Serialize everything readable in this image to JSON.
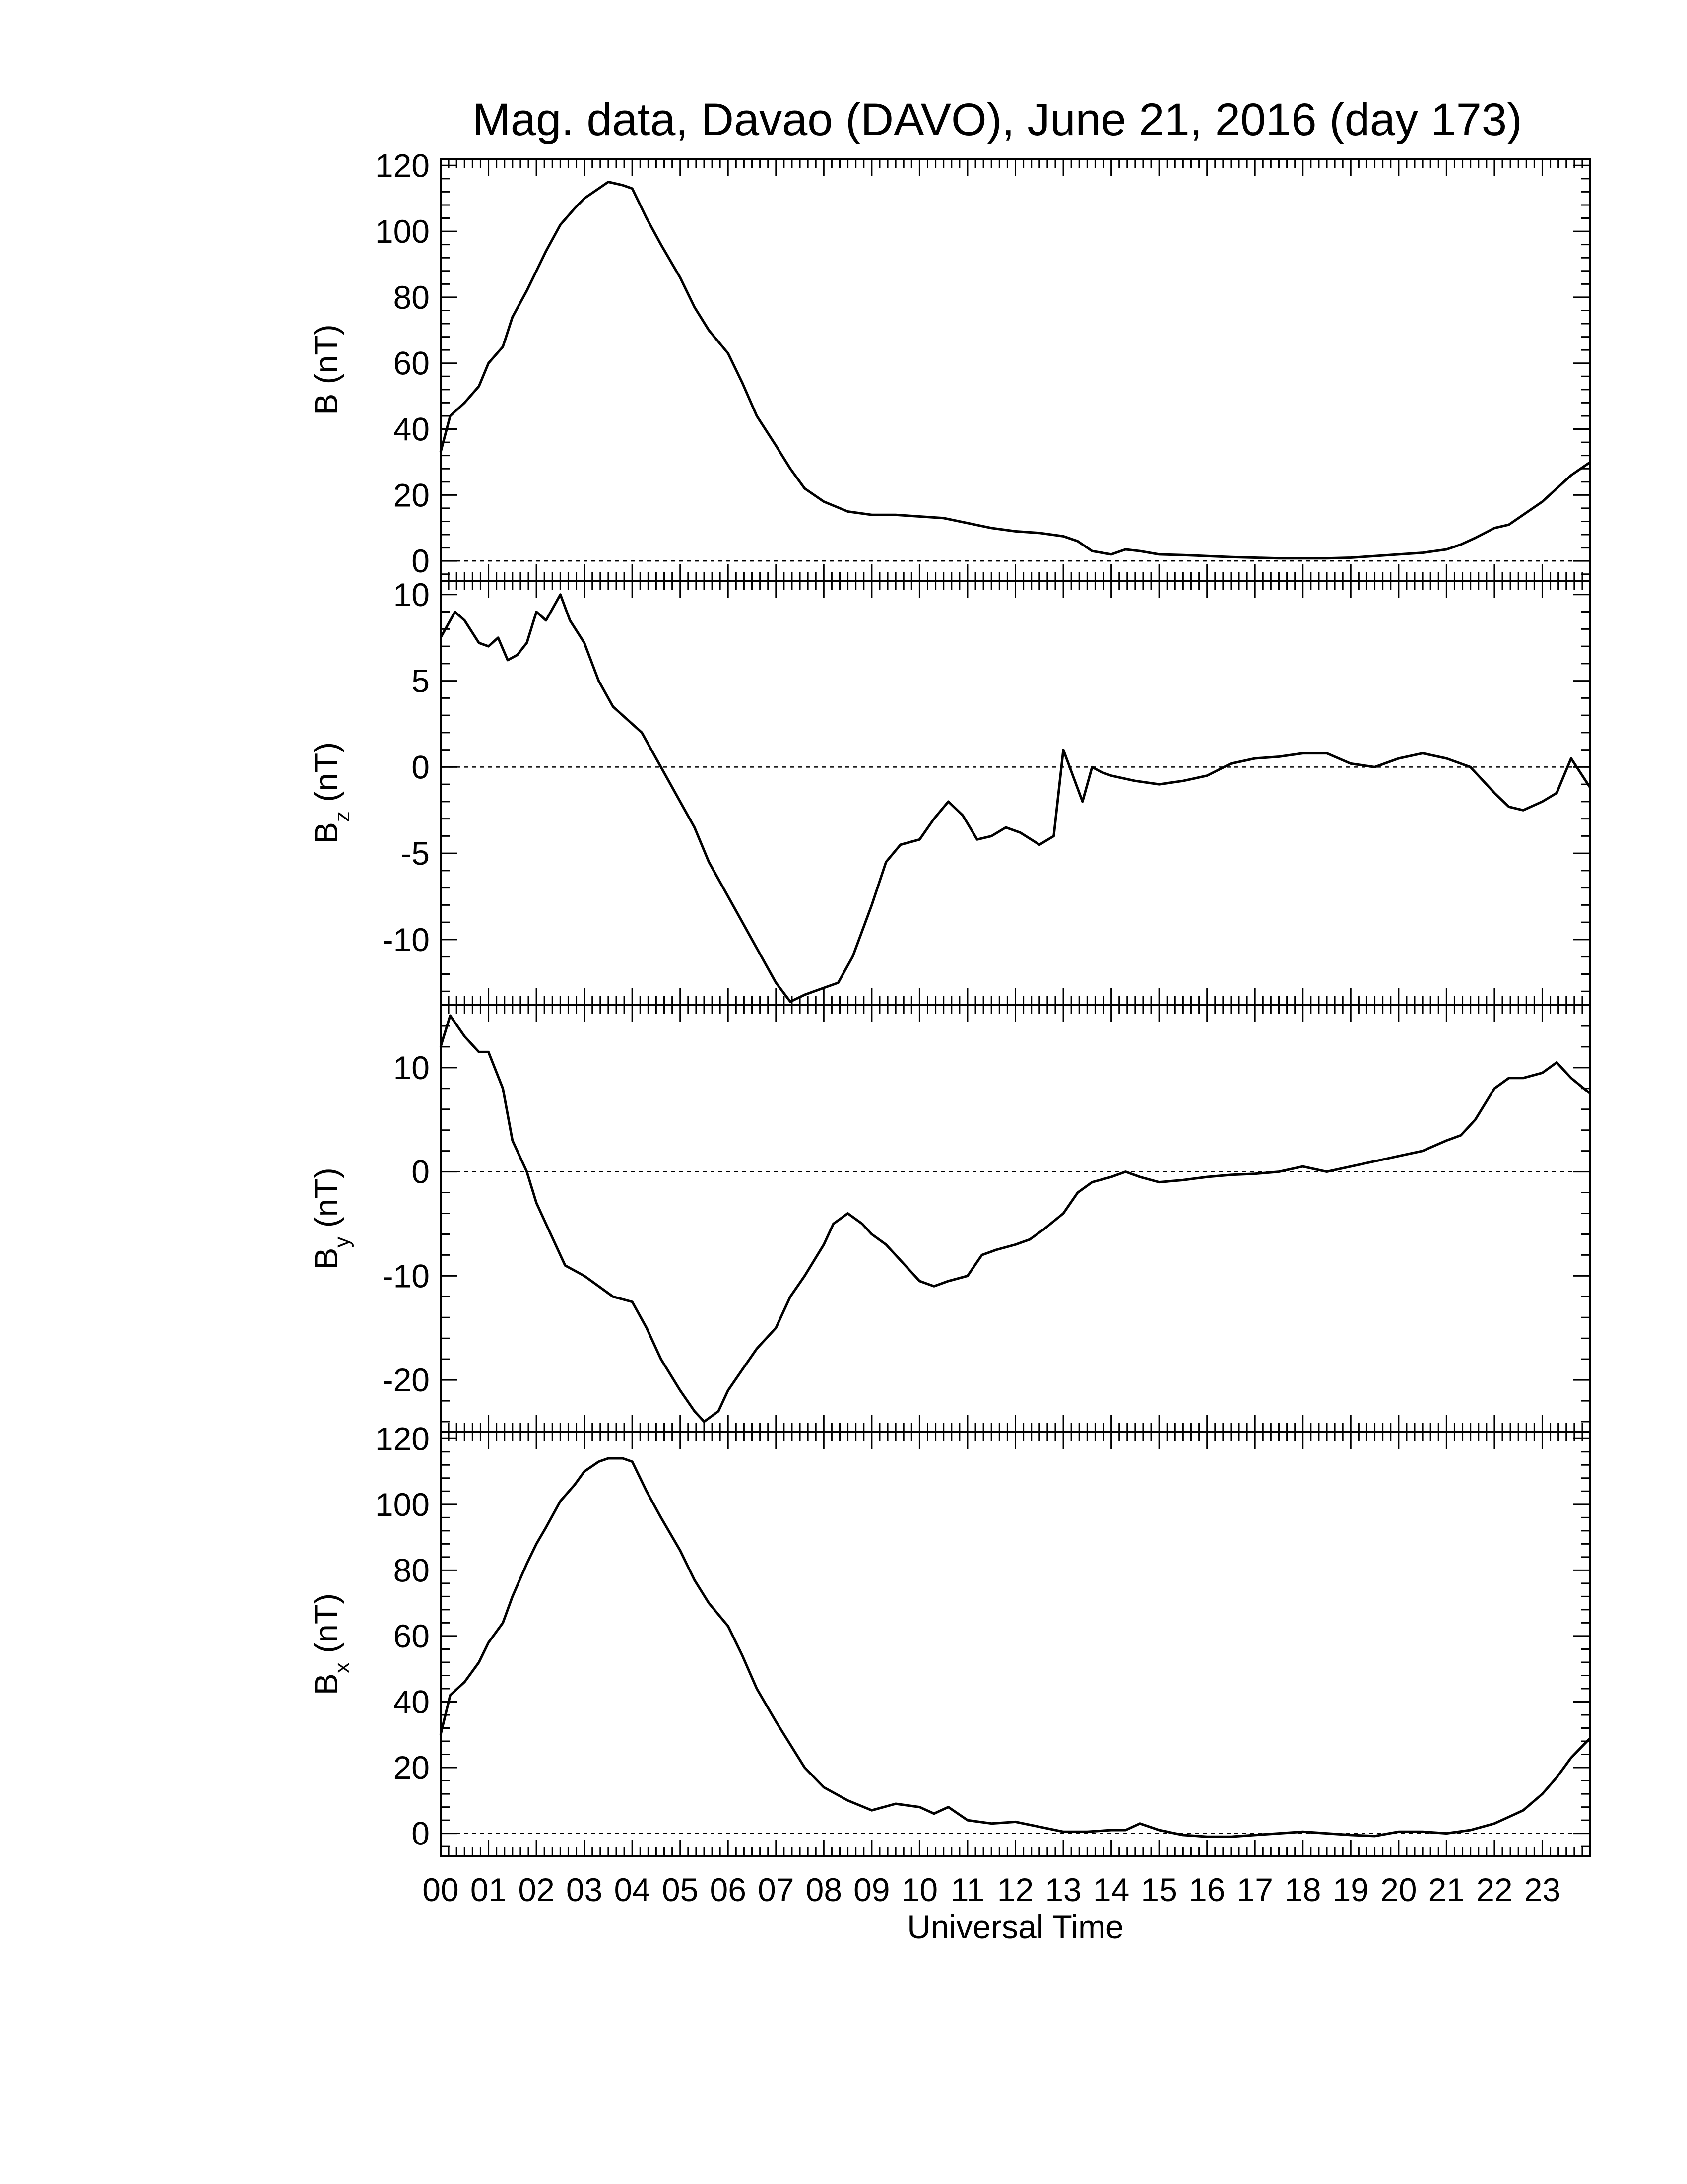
{
  "title": "Mag. data, Davao (DAVO), June 21, 2016 (day 173)",
  "colors": {
    "line": "#000000",
    "background": "#ffffff",
    "zero_line": "#000000"
  },
  "chart_data": [
    {
      "type": "line",
      "ylabel_main": "B",
      "ylabel_sub": "",
      "ylabel_unit": "(nT)",
      "ylim": [
        -6,
        122
      ],
      "yticks": [
        0,
        20,
        40,
        60,
        80,
        100,
        120
      ],
      "zero_line": true,
      "series": [
        {
          "x": [
            0,
            0.2,
            0.5,
            0.8,
            1.0,
            1.3,
            1.5,
            1.8,
            2.0,
            2.2,
            2.5,
            2.8,
            3.0,
            3.3,
            3.5,
            3.8,
            4.0,
            4.3,
            4.6,
            5.0,
            5.3,
            5.6,
            6.0,
            6.3,
            6.6,
            7.0,
            7.3,
            7.6,
            8.0,
            8.5,
            9.0,
            9.5,
            10.0,
            10.5,
            11.0,
            11.5,
            12.0,
            12.5,
            13.0,
            13.3,
            13.6,
            14.0,
            14.3,
            14.6,
            15.0,
            15.5,
            16.0,
            16.5,
            17.0,
            17.5,
            18.0,
            18.5,
            19.0,
            19.5,
            20.0,
            20.5,
            21.0,
            21.3,
            21.6,
            22.0,
            22.3,
            22.6,
            23.0,
            23.3,
            23.6,
            24.0
          ],
          "y": [
            33,
            44,
            48,
            53,
            60,
            65,
            74,
            82,
            88,
            94,
            102,
            107,
            110,
            113,
            115,
            114,
            113,
            104,
            96,
            86,
            77,
            70,
            63,
            54,
            44,
            35,
            28,
            22,
            18,
            15,
            14,
            14,
            13.5,
            13,
            11.5,
            10,
            9,
            8.5,
            7.5,
            6,
            3,
            2,
            3.5,
            3,
            2,
            1.8,
            1.5,
            1.2,
            1,
            0.8,
            0.8,
            0.8,
            1,
            1.5,
            2,
            2.5,
            3.5,
            5,
            7,
            10,
            11,
            14,
            18,
            22,
            26,
            30
          ]
        }
      ]
    },
    {
      "type": "line",
      "ylabel_main": "B",
      "ylabel_sub": "z",
      "ylabel_unit": "(nT)",
      "ylim": [
        -13.8,
        10.8
      ],
      "yticks": [
        -10,
        -5,
        0,
        5,
        10
      ],
      "zero_line": true,
      "series": [
        {
          "x": [
            0,
            0.3,
            0.5,
            0.8,
            1.0,
            1.2,
            1.4,
            1.6,
            1.8,
            2.0,
            2.2,
            2.5,
            2.7,
            3.0,
            3.3,
            3.6,
            4.0,
            4.2,
            4.5,
            4.8,
            5.0,
            5.3,
            5.6,
            6.0,
            6.4,
            6.8,
            7.0,
            7.3,
            7.6,
            8.0,
            8.3,
            8.6,
            9.0,
            9.3,
            9.6,
            10.0,
            10.3,
            10.6,
            10.9,
            11.2,
            11.5,
            11.8,
            12.1,
            12.5,
            12.8,
            13.0,
            13.2,
            13.4,
            13.6,
            13.8,
            14.0,
            14.5,
            15.0,
            15.5,
            16.0,
            16.5,
            17.0,
            17.5,
            18.0,
            18.5,
            19.0,
            19.5,
            20.0,
            20.5,
            21.0,
            21.5,
            22.0,
            22.3,
            22.6,
            23.0,
            23.3,
            23.6,
            24.0
          ],
          "y": [
            7.5,
            9,
            8.5,
            7.2,
            7,
            7.5,
            6.2,
            6.5,
            7.2,
            9,
            8.5,
            10,
            8.5,
            7.2,
            5,
            3.5,
            2.5,
            2,
            0.5,
            -1,
            -2,
            -3.5,
            -5.5,
            -7.5,
            -9.5,
            -11.5,
            -12.5,
            -13.6,
            -13.2,
            -12.8,
            -12.5,
            -11,
            -8,
            -5.5,
            -4.5,
            -4.2,
            -3,
            -2,
            -2.8,
            -4.2,
            -4,
            -3.5,
            -3.8,
            -4.5,
            -4,
            1,
            -0.5,
            -2,
            0,
            -0.3,
            -0.5,
            -0.8,
            -1,
            -0.8,
            -0.5,
            0.2,
            0.5,
            0.6,
            0.8,
            0.8,
            0.2,
            0,
            0.5,
            0.8,
            0.5,
            0,
            -1.5,
            -2.3,
            -2.5,
            -2,
            -1.5,
            0.5,
            -1.2
          ]
        }
      ]
    },
    {
      "type": "line",
      "ylabel_main": "B",
      "ylabel_sub": "y",
      "ylabel_unit": "(nT)",
      "ylim": [
        -25,
        16
      ],
      "yticks": [
        -20,
        -10,
        0,
        10
      ],
      "zero_line": true,
      "series": [
        {
          "x": [
            0,
            0.2,
            0.5,
            0.8,
            1.0,
            1.3,
            1.5,
            1.8,
            2.0,
            2.3,
            2.6,
            3.0,
            3.3,
            3.6,
            4.0,
            4.3,
            4.6,
            5.0,
            5.3,
            5.5,
            5.8,
            6.0,
            6.3,
            6.6,
            7.0,
            7.3,
            7.6,
            8.0,
            8.2,
            8.5,
            8.8,
            9.0,
            9.3,
            9.6,
            10.0,
            10.3,
            10.6,
            11.0,
            11.3,
            11.6,
            12.0,
            12.3,
            12.6,
            13.0,
            13.3,
            13.6,
            14.0,
            14.3,
            14.6,
            15.0,
            15.5,
            16.0,
            16.5,
            17.0,
            17.5,
            18.0,
            18.5,
            19.0,
            19.5,
            20.0,
            20.5,
            21.0,
            21.3,
            21.6,
            22.0,
            22.3,
            22.6,
            23.0,
            23.3,
            23.6,
            24.0
          ],
          "y": [
            12,
            15,
            13,
            11.5,
            11.5,
            8,
            3,
            0,
            -3,
            -6,
            -9,
            -10,
            -11,
            -12,
            -12.5,
            -15,
            -18,
            -21,
            -23,
            -24,
            -23,
            -21,
            -19,
            -17,
            -15,
            -12,
            -10,
            -7,
            -5,
            -4,
            -5,
            -6,
            -7,
            -8.5,
            -10.5,
            -11,
            -10.5,
            -10,
            -8,
            -7.5,
            -7,
            -6.5,
            -5.5,
            -4,
            -2,
            -1,
            -0.5,
            0,
            -0.5,
            -1,
            -0.8,
            -0.5,
            -0.3,
            -0.2,
            0,
            0.5,
            0,
            0.5,
            1,
            1.5,
            2,
            3,
            3.5,
            5,
            8,
            9,
            9,
            9.5,
            10.5,
            9,
            7.5
          ]
        }
      ]
    },
    {
      "type": "line",
      "ylabel_main": "B",
      "ylabel_sub": "x",
      "ylabel_unit": "(nT)",
      "ylim": [
        -7,
        122
      ],
      "yticks": [
        0,
        20,
        40,
        60,
        80,
        100,
        120
      ],
      "zero_line": true,
      "series": [
        {
          "x": [
            0,
            0.2,
            0.5,
            0.8,
            1.0,
            1.3,
            1.5,
            1.8,
            2.0,
            2.2,
            2.5,
            2.8,
            3.0,
            3.3,
            3.5,
            3.8,
            4.0,
            4.3,
            4.6,
            5.0,
            5.3,
            5.6,
            6.0,
            6.3,
            6.6,
            7.0,
            7.3,
            7.6,
            8.0,
            8.5,
            9.0,
            9.5,
            10.0,
            10.3,
            10.6,
            11.0,
            11.5,
            12.0,
            12.5,
            13.0,
            13.5,
            14.0,
            14.3,
            14.6,
            15.0,
            15.5,
            16.0,
            16.5,
            17.0,
            17.5,
            18.0,
            18.5,
            19.0,
            19.5,
            20.0,
            20.5,
            21.0,
            21.5,
            22.0,
            22.3,
            22.6,
            23.0,
            23.3,
            23.6,
            24.0
          ],
          "y": [
            30,
            42,
            46,
            52,
            58,
            64,
            72,
            82,
            88,
            93,
            101,
            106,
            110,
            113,
            114,
            114,
            113,
            104,
            96,
            86,
            77,
            70,
            63,
            54,
            44,
            34,
            27,
            20,
            14,
            10,
            7,
            9,
            8,
            6,
            8,
            4,
            3,
            3.5,
            2,
            0.5,
            0.5,
            1,
            1,
            3,
            1,
            -0.5,
            -1,
            -1,
            -0.5,
            0,
            0.5,
            0,
            -0.5,
            -0.8,
            0.5,
            0.5,
            0,
            1,
            3,
            5,
            7,
            12,
            17,
            23,
            29
          ]
        }
      ]
    }
  ],
  "x_axis": {
    "xlim": [
      0,
      24
    ],
    "ticks": [
      0,
      1,
      2,
      3,
      4,
      5,
      6,
      7,
      8,
      9,
      10,
      11,
      12,
      13,
      14,
      15,
      16,
      17,
      18,
      19,
      20,
      21,
      22,
      23
    ],
    "tick_labels": [
      "00",
      "01",
      "02",
      "03",
      "04",
      "05",
      "06",
      "07",
      "08",
      "09",
      "10",
      "11",
      "12",
      "13",
      "14",
      "15",
      "16",
      "17",
      "18",
      "19",
      "20",
      "21",
      "22",
      "23"
    ],
    "xlabel": "Universal Time"
  }
}
